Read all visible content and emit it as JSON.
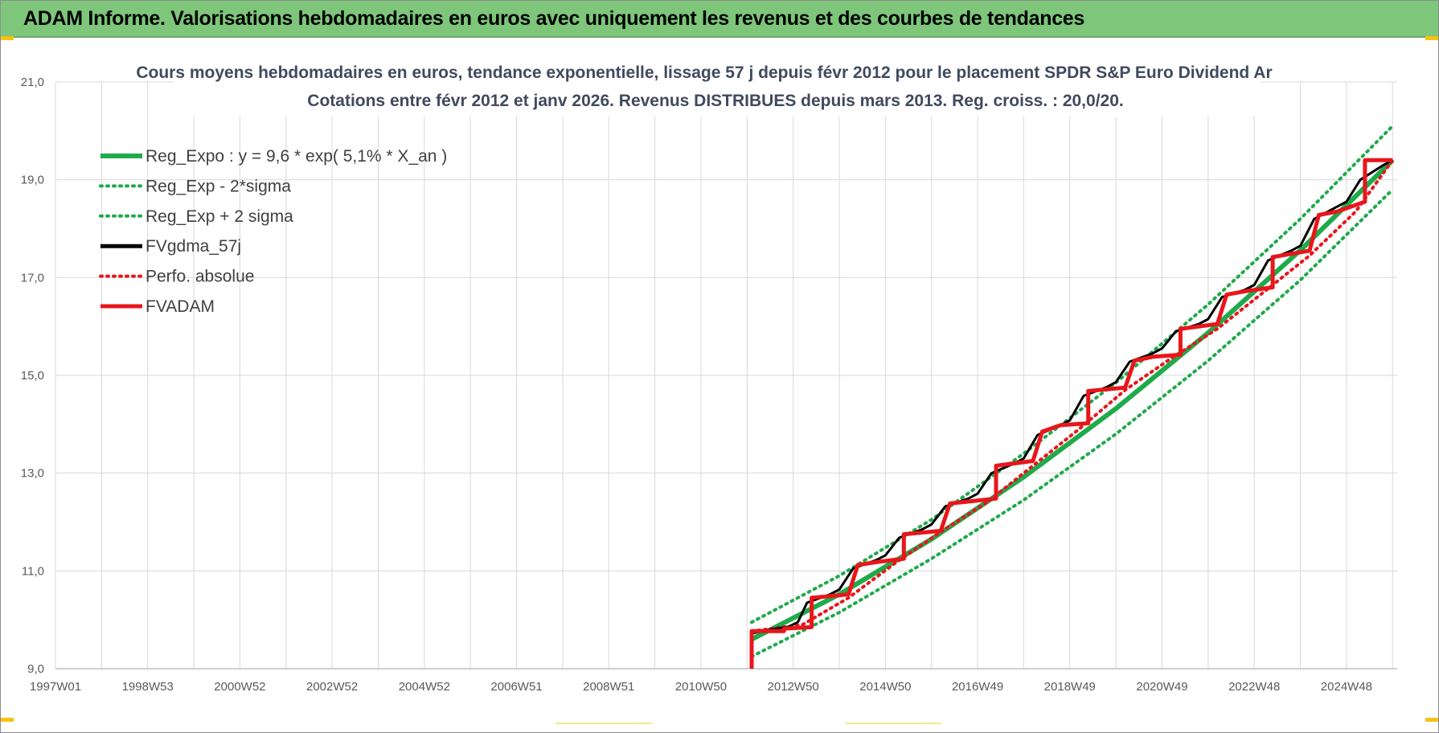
{
  "header": {
    "title": "ADAM Informe. Valorisations hebdomadaires en euros avec uniquement les revenus et des courbes de tendances"
  },
  "colors": {
    "header_bg": "#7dc67a",
    "reg": "#1faa4b",
    "fvgdma": "#000000",
    "fvadam": "#e8161b",
    "perfo": "#e8161b",
    "grid": "#d9d9d9"
  },
  "chart_data": {
    "type": "line",
    "title": [
      "Cours moyens hebdomadaires en euros, tendance exponentielle, lissage 57 j depuis févr 2012 pour le placement SPDR S&P Euro Dividend Ar",
      "Cotations entre févr 2012 et janv 2026. Revenus DISTRIBUES depuis mars 2013. Reg. croiss. : 20,0/20."
    ],
    "xlabel": "",
    "ylabel": "",
    "x_range": [
      1997.0,
      2026.1
    ],
    "ylim": [
      9.0,
      21.0
    ],
    "y_ticks": [
      9.0,
      11.0,
      13.0,
      15.0,
      17.0,
      19.0,
      21.0
    ],
    "y_tick_labels": [
      "9,0",
      "11,0",
      "13,0",
      "15,0",
      "17,0",
      "19,0",
      "21,0"
    ],
    "x_ticks": [
      1997.0,
      1998.0,
      1999.0,
      2000.0,
      2001.0,
      2002.0,
      2003.0,
      2004.0,
      2005.0,
      2006.0,
      2007.0,
      2008.0,
      2009.0,
      2010.0,
      2011.0,
      2012.0,
      2013.0,
      2014.0,
      2015.0,
      2016.0,
      2017.0,
      2018.0,
      2019.0,
      2020.0,
      2021.0,
      2022.0,
      2023.0,
      2024.0,
      2025.0,
      2026.0
    ],
    "x_tick_labels": [
      {
        "x": 1997.0,
        "label": "1997W01"
      },
      {
        "x": 1999.0,
        "label": "1998W53"
      },
      {
        "x": 2001.0,
        "label": "2000W52"
      },
      {
        "x": 2003.0,
        "label": "2002W52"
      },
      {
        "x": 2005.0,
        "label": "2004W52"
      },
      {
        "x": 2007.0,
        "label": "2006W51"
      },
      {
        "x": 2009.0,
        "label": "2008W51"
      },
      {
        "x": 2011.0,
        "label": "2010W50"
      },
      {
        "x": 2013.0,
        "label": "2012W50"
      },
      {
        "x": 2015.0,
        "label": "2014W50"
      },
      {
        "x": 2017.0,
        "label": "2016W49"
      },
      {
        "x": 2019.0,
        "label": "2018W49"
      },
      {
        "x": 2021.0,
        "label": "2020W49"
      },
      {
        "x": 2023.0,
        "label": "2022W48"
      },
      {
        "x": 2025.0,
        "label": "2024W48"
      }
    ],
    "grid": true,
    "legend_position": "top-left",
    "series": [
      {
        "name": "Reg_Expo : y = 9,6 * exp( 5,1% *  X_an )",
        "style": "solid-thick",
        "color": "#1faa4b",
        "x": [
          2012.1,
          2014.0,
          2016.0,
          2018.0,
          2020.0,
          2022.0,
          2024.0,
          2026.0
        ],
        "y": [
          9.6,
          10.52,
          11.65,
          12.92,
          14.32,
          15.87,
          17.56,
          19.4
        ]
      },
      {
        "name": "Reg_Exp - 2*sigma",
        "style": "dotted",
        "color": "#1faa4b",
        "x": [
          2012.1,
          2014.0,
          2016.0,
          2018.0,
          2020.0,
          2022.0,
          2024.0,
          2026.0
        ],
        "y": [
          9.25,
          10.15,
          11.25,
          12.45,
          13.8,
          15.3,
          16.95,
          18.8
        ]
      },
      {
        "name": "Reg_Exp + 2 sigma",
        "style": "dotted",
        "color": "#1faa4b",
        "x": [
          2012.1,
          2014.0,
          2016.0,
          2018.0,
          2020.0,
          2022.0,
          2024.0,
          2026.0
        ],
        "y": [
          9.95,
          10.9,
          12.05,
          13.4,
          14.85,
          16.45,
          18.2,
          20.1
        ]
      },
      {
        "name": "FVgdma_57j",
        "style": "solid",
        "color": "#000000",
        "x": [
          2012.1,
          2012.5,
          2012.9,
          2013.1,
          2013.3,
          2013.8,
          2014.0,
          2014.3,
          2014.8,
          2015.0,
          2015.3,
          2015.8,
          2016.0,
          2016.3,
          2016.8,
          2017.0,
          2017.3,
          2017.8,
          2018.0,
          2018.3,
          2018.8,
          2019.0,
          2019.3,
          2019.8,
          2020.0,
          2020.3,
          2020.8,
          2021.0,
          2021.3,
          2021.8,
          2022.0,
          2022.3,
          2022.8,
          2023.0,
          2023.3,
          2023.8,
          2024.0,
          2024.3,
          2024.8,
          2025.0,
          2025.3,
          2025.8,
          2026.0
        ],
        "y": [
          9.72,
          9.8,
          9.86,
          9.95,
          10.35,
          10.52,
          10.62,
          11.05,
          11.22,
          11.32,
          11.68,
          11.85,
          11.95,
          12.32,
          12.48,
          12.58,
          13.0,
          13.2,
          13.3,
          13.78,
          13.98,
          14.08,
          14.58,
          14.76,
          14.86,
          15.28,
          15.45,
          15.55,
          15.9,
          16.05,
          16.15,
          16.6,
          16.75,
          16.85,
          17.35,
          17.55,
          17.65,
          18.2,
          18.45,
          18.55,
          19.0,
          19.3,
          19.4
        ]
      },
      {
        "name": "Perfo. absolue",
        "style": "dotted",
        "color": "#e8161b",
        "x": [
          2012.1,
          2013.2,
          2014.2,
          2015.2,
          2016.2,
          2017.2,
          2018.2,
          2019.2,
          2020.2,
          2021.2,
          2022.2,
          2023.2,
          2024.2,
          2025.2,
          2026.0
        ],
        "y": [
          9.77,
          9.9,
          10.45,
          11.15,
          11.8,
          12.4,
          13.15,
          13.9,
          14.7,
          15.35,
          15.95,
          16.7,
          17.45,
          18.35,
          19.4
        ]
      },
      {
        "name": "FVADAM",
        "style": "step-thick",
        "color": "#e8161b",
        "x": [
          2012.1,
          2012.1,
          2012.3,
          2012.8,
          2012.8,
          2013.4,
          2013.4,
          2013.4,
          2014.2,
          2014.2,
          2014.4,
          2014.8,
          2014.8,
          2015.4,
          2015.4,
          2015.4,
          2016.2,
          2016.2,
          2016.4,
          2016.8,
          2016.8,
          2017.4,
          2017.4,
          2017.4,
          2018.2,
          2018.2,
          2018.4,
          2018.8,
          2018.8,
          2019.4,
          2019.4,
          2019.4,
          2020.2,
          2020.2,
          2020.4,
          2020.8,
          2020.8,
          2021.4,
          2021.4,
          2021.4,
          2022.2,
          2022.2,
          2022.4,
          2022.8,
          2022.8,
          2023.4,
          2023.4,
          2023.4,
          2024.2,
          2024.2,
          2024.4,
          2024.8,
          2024.8,
          2025.4,
          2025.4,
          2025.4,
          2026.0
        ],
        "y": [
          9.0,
          9.77,
          9.77,
          9.77,
          9.82,
          9.85,
          9.85,
          10.45,
          10.52,
          10.52,
          11.12,
          11.18,
          11.18,
          11.25,
          11.25,
          11.75,
          11.82,
          11.82,
          12.38,
          12.42,
          12.42,
          12.48,
          12.48,
          13.15,
          13.25,
          13.25,
          13.85,
          13.98,
          13.98,
          14.02,
          14.02,
          14.68,
          14.75,
          14.75,
          15.3,
          15.38,
          15.38,
          15.42,
          15.42,
          15.95,
          16.05,
          16.05,
          16.65,
          16.72,
          16.72,
          16.8,
          16.8,
          17.42,
          17.55,
          17.55,
          18.28,
          18.35,
          18.35,
          18.55,
          18.55,
          19.4,
          19.4
        ]
      }
    ]
  }
}
